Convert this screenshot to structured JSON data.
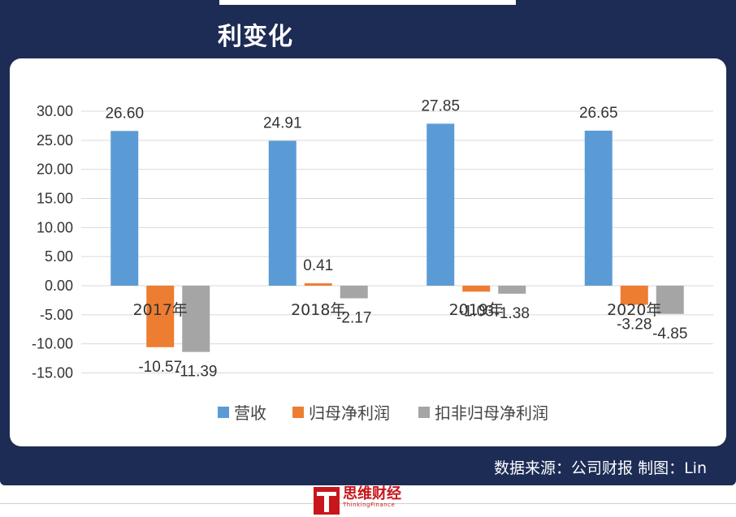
{
  "header": {
    "title": "利变化"
  },
  "footer": {
    "source": "数据来源：公司财报    制图：Lin"
  },
  "logo": {
    "name": "思维财经",
    "subtitle": "ThinkingFinance"
  },
  "colors": {
    "banner": "#1d2c55",
    "revenue": "#5b9bd5",
    "net_profit": "#ed7d31",
    "deducted_profit": "#a5a5a5"
  },
  "chart_data": {
    "type": "bar",
    "categories": [
      "2017年",
      "2018年",
      "2019年",
      "2020年"
    ],
    "series": [
      {
        "name": "营收",
        "values": [
          26.6,
          24.91,
          27.85,
          26.65
        ],
        "labels": [
          "26.60",
          "24.91",
          "27.85",
          "26.65"
        ]
      },
      {
        "name": "归母净利润",
        "values": [
          -10.57,
          0.41,
          -1.03,
          -3.28
        ],
        "labels": [
          "-10.57",
          "0.41",
          "-1.03",
          "-3.28"
        ]
      },
      {
        "name": "扣非归母净利润",
        "values": [
          -11.39,
          -2.17,
          -1.38,
          -4.85
        ],
        "labels": [
          "-11.39",
          "-2.17",
          "-1.38",
          "-4.85"
        ]
      }
    ],
    "yticks": [
      "30.00",
      "25.00",
      "20.00",
      "15.00",
      "10.00",
      "5.00",
      "0.00",
      "-5.00",
      "-10.00",
      "-15.00"
    ],
    "ytick_values": [
      30,
      25,
      20,
      15,
      10,
      5,
      0,
      -5,
      -10,
      -15
    ],
    "ylim": [
      -15,
      30
    ],
    "grid": true,
    "legend_position": "bottom"
  }
}
